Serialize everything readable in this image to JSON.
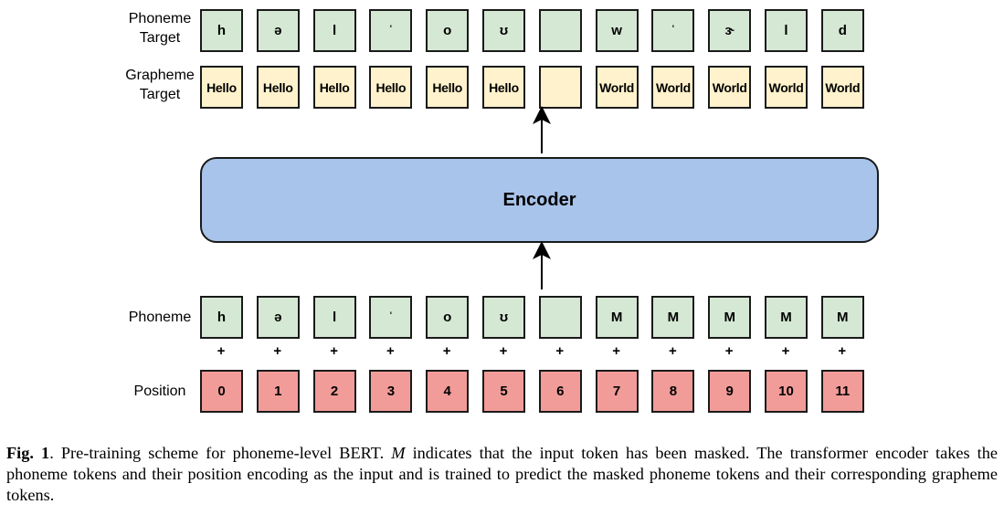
{
  "labels": {
    "phoneme_target": [
      "Phoneme",
      "Target"
    ],
    "grapheme_target": [
      "Grapheme",
      "Target"
    ],
    "phoneme": "Phoneme",
    "position": "Position"
  },
  "phoneme_target": [
    "h",
    "ə",
    "l",
    "ˈ",
    "o",
    "ʊ",
    "",
    "w",
    "ˈ",
    "ɝ",
    "l",
    "d"
  ],
  "grapheme_target": [
    "Hello",
    "Hello",
    "Hello",
    "Hello",
    "Hello",
    "Hello",
    "",
    "World",
    "World",
    "World",
    "World",
    "World"
  ],
  "encoder_label": "Encoder",
  "phoneme_input": [
    "h",
    "ə",
    "l",
    "ˈ",
    "o",
    "ʊ",
    "",
    "M",
    "M",
    "M",
    "M",
    "M"
  ],
  "plus_sign": "+",
  "positions": [
    "0",
    "1",
    "2",
    "3",
    "4",
    "5",
    "6",
    "7",
    "8",
    "9",
    "10",
    "11"
  ],
  "caption": {
    "fig": "Fig. 1",
    "pre": ". Pre-training scheme for phoneme-level BERT. ",
    "m": "M",
    "post": " indicates that the input token has been masked. The transformer encoder takes the phoneme tokens and their position encoding as the input and is trained to predict the masked phoneme tokens and their corresponding grapheme tokens."
  },
  "colors": {
    "phoneme_fill": "#d5e8d4",
    "grapheme_fill": "#fff2cc",
    "position_fill": "#f19c99",
    "encoder_fill": "#a9c4eb"
  }
}
